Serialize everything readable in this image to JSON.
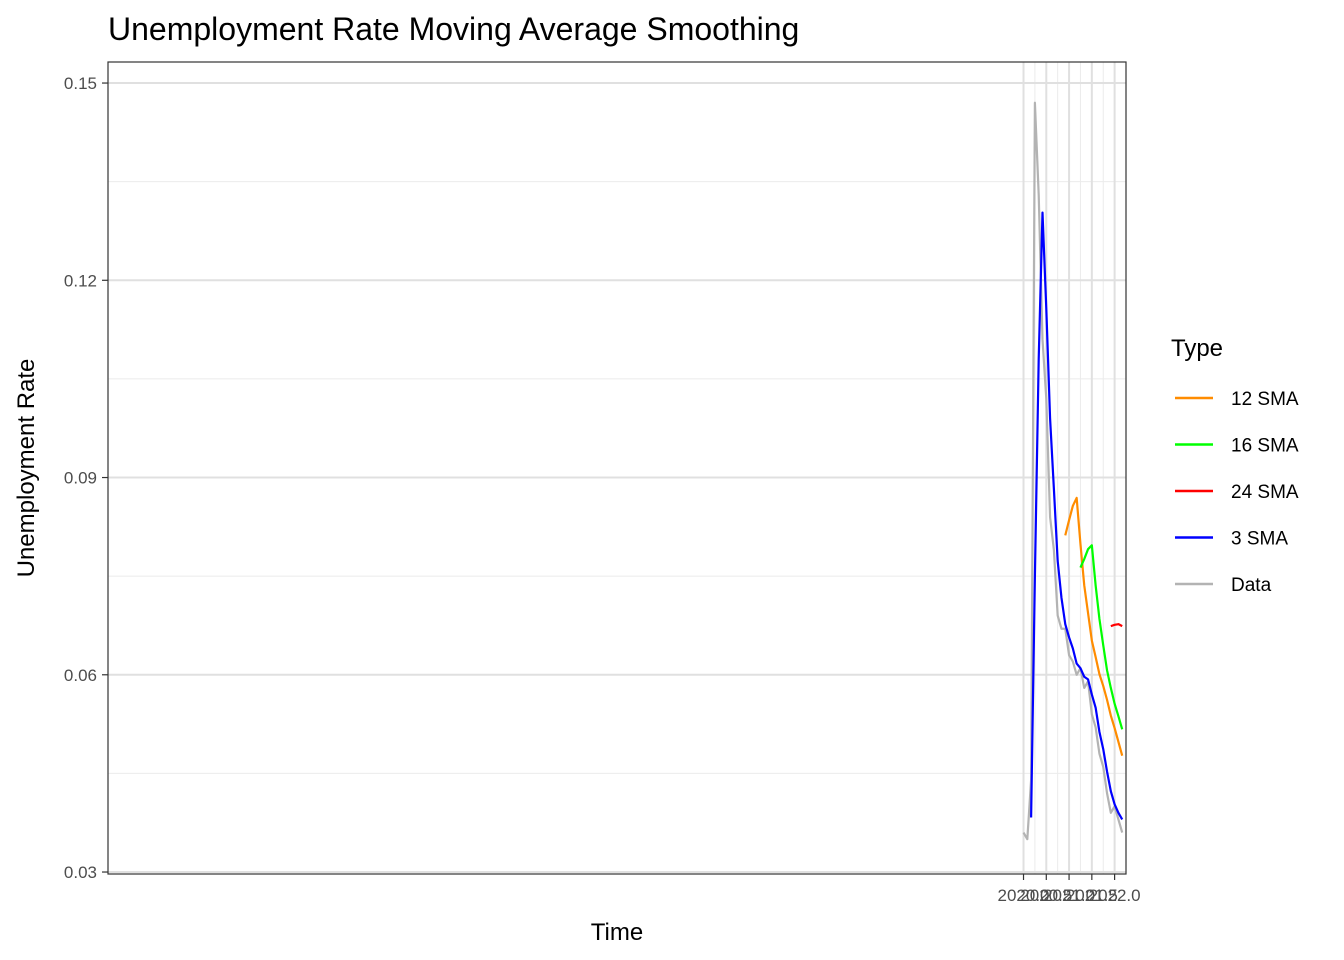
{
  "chart_data": {
    "type": "line",
    "title": "Unemployment Rate Moving Average Smoothing",
    "xlabel": "Time",
    "ylabel": "Unemployment Rate",
    "xlim": [
      1999.9999,
      2022.1667
    ],
    "xlim_actual": [
      2020.0,
      2022.1667
    ],
    "ylim": [
      0.03,
      0.15
    ],
    "x_ticks": [
      2020.0,
      2020.5,
      2021.0,
      2021.5,
      2022.0
    ],
    "x_tick_labels": [
      "2020.0",
      "2020.5",
      "2021.0",
      "2021.5",
      "2022.0"
    ],
    "y_ticks": [
      0.03,
      0.06,
      0.09,
      0.12,
      0.15
    ],
    "y_tick_labels": [
      "0.03",
      "0.06",
      "0.09",
      "0.12",
      "0.15"
    ],
    "grid": true,
    "legend": {
      "title": "Type",
      "placement": "right",
      "entries": [
        "12 SMA",
        "16 SMA",
        "24 SMA",
        "3 SMA",
        "Data"
      ]
    },
    "series": [
      {
        "name": "12 SMA",
        "color": "#FF8C00",
        "x": [
          2020.9167,
          2021.0,
          2021.0833,
          2021.1667,
          2021.25,
          2021.3333,
          2021.4167,
          2021.5,
          2021.5833,
          2021.6667,
          2021.75,
          2021.8333,
          2021.9167,
          2022.0,
          2022.0833,
          2022.1667
        ],
        "y": [
          0.0812,
          0.0835,
          0.0857,
          0.0869,
          0.0799,
          0.0736,
          0.0694,
          0.0652,
          0.0627,
          0.0601,
          0.0583,
          0.0562,
          0.0538,
          0.0519,
          0.0498,
          0.0477
        ]
      },
      {
        "name": "16 SMA",
        "color": "#00FF00",
        "x": [
          2021.25,
          2021.3333,
          2021.4167,
          2021.5,
          2021.5833,
          2021.6667,
          2021.75,
          2021.8333,
          2021.9167,
          2022.0,
          2022.0833,
          2022.1667
        ],
        "y": [
          0.0763,
          0.0776,
          0.0791,
          0.0797,
          0.0736,
          0.0685,
          0.0645,
          0.0607,
          0.058,
          0.0556,
          0.0537,
          0.0517
        ]
      },
      {
        "name": "24 SMA",
        "color": "#FF0000",
        "x": [
          2021.9167,
          2022.0,
          2022.0833,
          2022.1667
        ],
        "y": [
          0.0674,
          0.0676,
          0.0677,
          0.0674
        ]
      },
      {
        "name": "3 SMA",
        "color": "#0000FF",
        "x": [
          2020.1667,
          2020.25,
          2020.3333,
          2020.4167,
          2020.5,
          2020.5833,
          2020.6667,
          2020.75,
          2020.8333,
          2020.9167,
          2021.0,
          2021.0833,
          2021.1667,
          2021.25,
          2021.3333,
          2021.4167,
          2021.5,
          2021.5833,
          2021.6667,
          2021.75,
          2021.8333,
          2021.9167,
          2022.0,
          2022.0833,
          2022.1667
        ],
        "y": [
          0.0383,
          0.075,
          0.108,
          0.1303,
          0.1157,
          0.099,
          0.0883,
          0.0773,
          0.0717,
          0.0677,
          0.0657,
          0.064,
          0.0617,
          0.061,
          0.0597,
          0.0593,
          0.057,
          0.055,
          0.0513,
          0.0487,
          0.0453,
          0.0423,
          0.0403,
          0.039,
          0.038
        ]
      },
      {
        "name": "Data",
        "color": "#B3B3B3",
        "x": [
          2020.0,
          2020.0833,
          2020.1667,
          2020.25,
          2020.3333,
          2020.4167,
          2020.5,
          2020.5833,
          2020.6667,
          2020.75,
          2020.8333,
          2020.9167,
          2021.0,
          2021.0833,
          2021.1667,
          2021.25,
          2021.3333,
          2021.4167,
          2021.5,
          2021.5833,
          2021.6667,
          2021.75,
          2021.8333,
          2021.9167,
          2022.0,
          2022.0833,
          2022.1667
        ],
        "y": [
          0.036,
          0.035,
          0.044,
          0.147,
          0.133,
          0.111,
          0.102,
          0.084,
          0.079,
          0.069,
          0.067,
          0.067,
          0.063,
          0.062,
          0.06,
          0.061,
          0.058,
          0.059,
          0.054,
          0.052,
          0.048,
          0.046,
          0.042,
          0.039,
          0.04,
          0.038,
          0.036
        ]
      }
    ]
  }
}
